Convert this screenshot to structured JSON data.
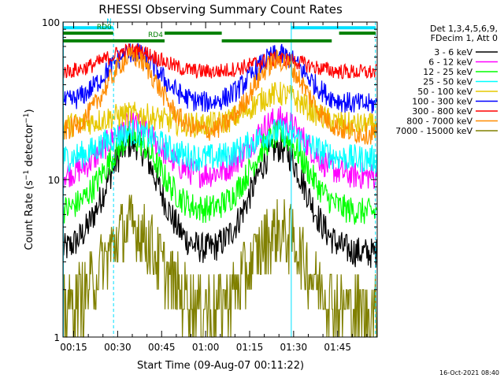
{
  "chart_data": {
    "type": "line",
    "title": "RHESSI Observing Summary Count Rates",
    "xlabel": "Start Time (09-Aug-07 00:11:22)",
    "ylabel": "Count Rate (s⁻¹ detector⁻¹)",
    "ylabel_parts": [
      "Count Rate (s",
      "−1",
      " detector",
      "−1",
      ")"
    ],
    "yscale": "log",
    "ylim": [
      1,
      100
    ],
    "xlim_minutes": [
      11.37,
      118.5
    ],
    "y_ticks": [
      {
        "v": 100,
        "label": "100"
      },
      {
        "v": 10,
        "label": "10"
      },
      {
        "v": 1,
        "label": "1"
      }
    ],
    "x_ticks": [
      {
        "m": 15,
        "label": "00:15"
      },
      {
        "m": 30,
        "label": "00:30"
      },
      {
        "m": 45,
        "label": "00:45"
      },
      {
        "m": 60,
        "label": "01:00"
      },
      {
        "m": 75,
        "label": "01:15"
      },
      {
        "m": 90,
        "label": "01:30"
      },
      {
        "m": 105,
        "label": "01:45"
      }
    ],
    "legend_header": [
      "Det 1,3,4,5,6,9,",
      "FDecim 1, Att 0"
    ],
    "legend_position": "right",
    "timestamp": "16-Oct-2021 08:40",
    "series": [
      {
        "name": "3 - 6 keV",
        "color": "#000000",
        "base": 3.4,
        "peak1": 17,
        "peak2": 16,
        "noise": 0.1
      },
      {
        "name": "6 - 12 keV",
        "color": "#ff00ff",
        "base": 10.5,
        "peak1": 22,
        "peak2": 24,
        "noise": 0.09
      },
      {
        "name": "12 - 25 keV",
        "color": "#00ff00",
        "base": 6.2,
        "peak1": 18,
        "peak2": 19,
        "noise": 0.09
      },
      {
        "name": "25 - 50 keV",
        "color": "#00ffff",
        "base": 13.5,
        "peak1": 20,
        "peak2": 20,
        "noise": 0.09
      },
      {
        "name": "50 - 100 keV",
        "color": "#e6c800",
        "base": 22,
        "peak1": 26,
        "peak2": 35,
        "noise": 0.08
      },
      {
        "name": "100 - 300 keV",
        "color": "#0000ff",
        "base": 30,
        "peak1": 64,
        "peak2": 62,
        "noise": 0.07
      },
      {
        "name": "300 - 800 keV",
        "color": "#ff0000",
        "base": 48,
        "peak1": 66,
        "peak2": 58,
        "noise": 0.05
      },
      {
        "name": "800 - 7000 keV",
        "color": "#ff8c00",
        "base": 19.5,
        "peak1": 60,
        "peak2": 57,
        "noise": 0.07
      },
      {
        "name": "7000 - 15000 keV",
        "color": "#808000",
        "base": 1.5,
        "peak1": 5.0,
        "peak2": 4.6,
        "noise": 0.22
      }
    ],
    "flags": [
      {
        "label": "N",
        "color": "#00e0ff",
        "value": 92,
        "intervals": [
          [
            11.4,
            28.5
          ],
          [
            89,
            118
          ]
        ]
      },
      {
        "label": "RD0",
        "color": "#008000",
        "value": 85,
        "intervals": [
          [
            11.4,
            28.5
          ],
          [
            46,
            65.5
          ],
          [
            105.5,
            118
          ]
        ]
      },
      {
        "label": "RD4",
        "color": "#008000",
        "value": 76,
        "intervals": [
          [
            11.4,
            46
          ],
          [
            65.5,
            103
          ]
        ]
      }
    ],
    "vertical_lines": [
      {
        "m": 11.5,
        "style": "solid",
        "color": "#00e0ff"
      },
      {
        "m": 28.6,
        "style": "dashed",
        "color": "#00e0ff"
      },
      {
        "m": 89.2,
        "style": "solid",
        "color": "#00e0ff"
      },
      {
        "m": 117.9,
        "style": "dashed",
        "color": "#00e0ff"
      }
    ],
    "grid": false
  }
}
